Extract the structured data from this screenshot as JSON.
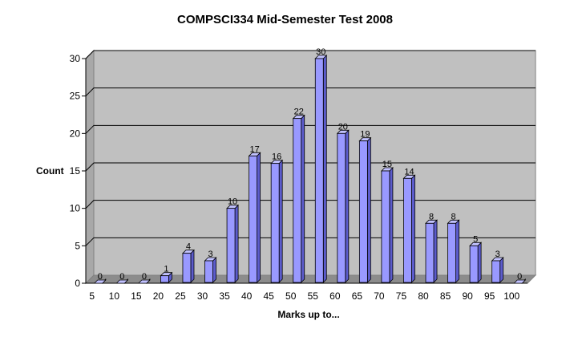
{
  "chart_data": {
    "type": "bar",
    "title": "COMPSCI334 Mid-Semester Test 2008",
    "xlabel": "Marks up to...",
    "ylabel": "Count",
    "ylim": [
      0,
      30
    ],
    "yticks": [
      0,
      5,
      10,
      15,
      20,
      25,
      30
    ],
    "categories": [
      "5",
      "10",
      "15",
      "20",
      "25",
      "30",
      "35",
      "40",
      "45",
      "50",
      "55",
      "60",
      "65",
      "70",
      "75",
      "80",
      "85",
      "90",
      "95",
      "100"
    ],
    "series": [
      {
        "values": [
          0,
          0,
          0,
          1,
          4,
          3,
          10,
          17,
          16,
          22,
          30,
          20,
          19,
          15,
          14,
          8,
          8,
          5,
          3,
          0
        ]
      }
    ],
    "grid": true,
    "legend": "none",
    "colors": {
      "bar_front": "#9999ff",
      "bar_side": "#5c5ccc",
      "bar_top": "#c2c2ff",
      "wall": "#c0c0c0",
      "floor": "#8c8c8c"
    }
  }
}
